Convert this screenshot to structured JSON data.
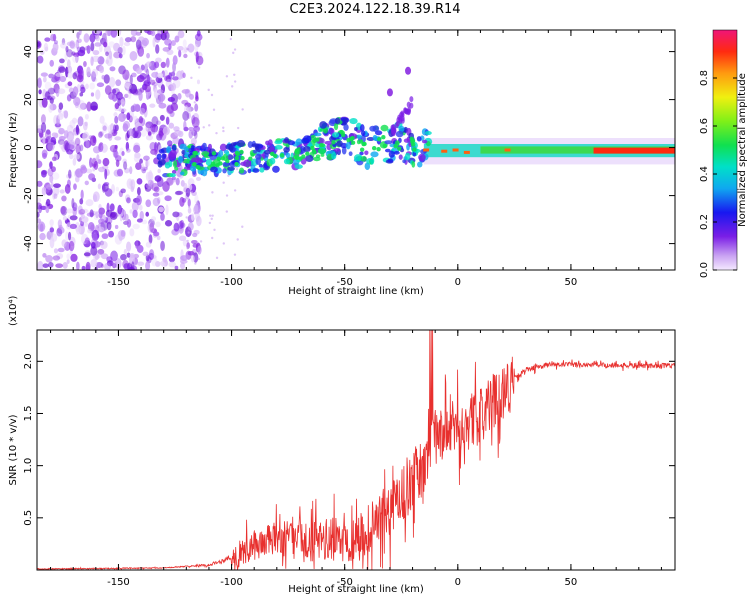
{
  "figure_title": "C2E3.2024.122.18.39.R14",
  "colors": {
    "axis": "#000000",
    "snr_line": "#e8302e",
    "background": "#ffffff"
  },
  "chart_data": [
    {
      "type": "heatmap",
      "title": "",
      "xlabel": "Height of straight line (km)",
      "ylabel": "Frequency (Hz)",
      "xlim": [
        -186,
        96
      ],
      "ylim": [
        -51,
        49
      ],
      "x_ticks": [
        -150,
        -100,
        -50,
        0,
        50
      ],
      "y_ticks": [
        40,
        20,
        0,
        -20,
        -40
      ],
      "grid": false,
      "description_points": {
        "noise_region_x": [
          -186,
          -120
        ],
        "trace": [
          {
            "x": -130,
            "y": -6
          },
          {
            "x": -110,
            "y": -5
          },
          {
            "x": -90,
            "y": -4
          },
          {
            "x": -70,
            "y": -2
          },
          {
            "x": -60,
            "y": 2
          },
          {
            "x": -50,
            "y": 6
          },
          {
            "x": -40,
            "y": 0
          },
          {
            "x": -30,
            "y": 2
          },
          {
            "x": -20,
            "y": 1
          },
          {
            "x": -10,
            "y": -2
          },
          {
            "x": 0,
            "y": -1
          },
          {
            "x": 10,
            "y": -2
          },
          {
            "x": 30,
            "y": -1
          },
          {
            "x": 60,
            "y": -1
          },
          {
            "x": 96,
            "y": -2
          }
        ],
        "spikes": [
          {
            "x": -22,
            "y": 32
          },
          {
            "x": -30,
            "y": 23
          }
        ]
      },
      "colorbar": {
        "label": "Normalized spectral amplitude",
        "range": [
          0.0,
          1.0
        ],
        "ticks": [
          "0.0",
          "0.2",
          "0.4",
          "0.6",
          "0.8"
        ],
        "tick_values": [
          0.0,
          0.2,
          0.4,
          0.6,
          0.8
        ]
      }
    },
    {
      "type": "line",
      "title": "",
      "xlabel": "Height of straight line (km)",
      "ylabel": "SNR (10 * v/v)",
      "y_multiplier": "(x10⁴)",
      "xlim": [
        -186,
        96
      ],
      "ylim": [
        0,
        2.3
      ],
      "x_ticks": [
        -150,
        -100,
        -50,
        0,
        50
      ],
      "y_ticks": [
        0.5,
        1.0,
        1.5,
        2.0
      ],
      "y_tick_labels": [
        "0.5",
        "1.0",
        "1.5",
        "2.0"
      ],
      "grid": false,
      "envelope": [
        {
          "x": -186,
          "y": 0.01
        },
        {
          "x": -130,
          "y": 0.02
        },
        {
          "x": -110,
          "y": 0.05
        },
        {
          "x": -100,
          "y": 0.12
        },
        {
          "x": -90,
          "y": 0.25
        },
        {
          "x": -80,
          "y": 0.32
        },
        {
          "x": -70,
          "y": 0.3
        },
        {
          "x": -60,
          "y": 0.3
        },
        {
          "x": -50,
          "y": 0.32
        },
        {
          "x": -40,
          "y": 0.4
        },
        {
          "x": -30,
          "y": 0.6
        },
        {
          "x": -20,
          "y": 0.9
        },
        {
          "x": -15,
          "y": 1.0
        },
        {
          "x": -10,
          "y": 1.3
        },
        {
          "x": 0,
          "y": 1.4
        },
        {
          "x": 10,
          "y": 1.5
        },
        {
          "x": 20,
          "y": 1.75
        },
        {
          "x": 30,
          "y": 1.92
        },
        {
          "x": 40,
          "y": 1.97
        },
        {
          "x": 60,
          "y": 1.97
        },
        {
          "x": 80,
          "y": 1.96
        },
        {
          "x": 96,
          "y": 1.96
        }
      ]
    }
  ]
}
